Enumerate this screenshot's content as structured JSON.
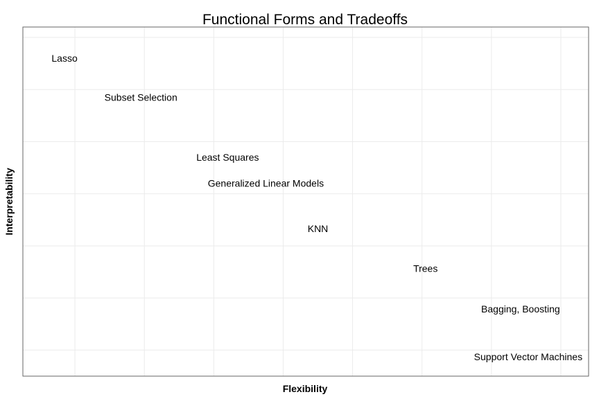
{
  "chart_data": {
    "type": "scatter",
    "title": "Functional Forms and Tradeoffs",
    "xlabel": "Flexibility",
    "ylabel": "Interpretability",
    "xlim": [
      0.25,
      8.4
    ],
    "ylim": [
      0.5,
      7.2
    ],
    "grid": true,
    "x_ticks": [
      1,
      2,
      3,
      4,
      5,
      6,
      7,
      8
    ],
    "y_ticks": [
      1,
      2,
      3,
      4,
      5,
      6,
      7
    ],
    "points": [
      {
        "label": "Lasso",
        "x": 0.85,
        "y": 6.6
      },
      {
        "label": "Subset Selection",
        "x": 1.95,
        "y": 5.85
      },
      {
        "label": "Least Squares",
        "x": 3.2,
        "y": 4.7
      },
      {
        "label": "Generalized Linear Models",
        "x": 3.75,
        "y": 4.2
      },
      {
        "label": "KNN",
        "x": 4.5,
        "y": 3.33
      },
      {
        "label": "Trees",
        "x": 6.05,
        "y": 2.57
      },
      {
        "label": "Bagging, Boosting",
        "x": 7.42,
        "y": 1.79
      },
      {
        "label": "Support Vector Machines",
        "x": 7.53,
        "y": 0.87
      }
    ]
  }
}
